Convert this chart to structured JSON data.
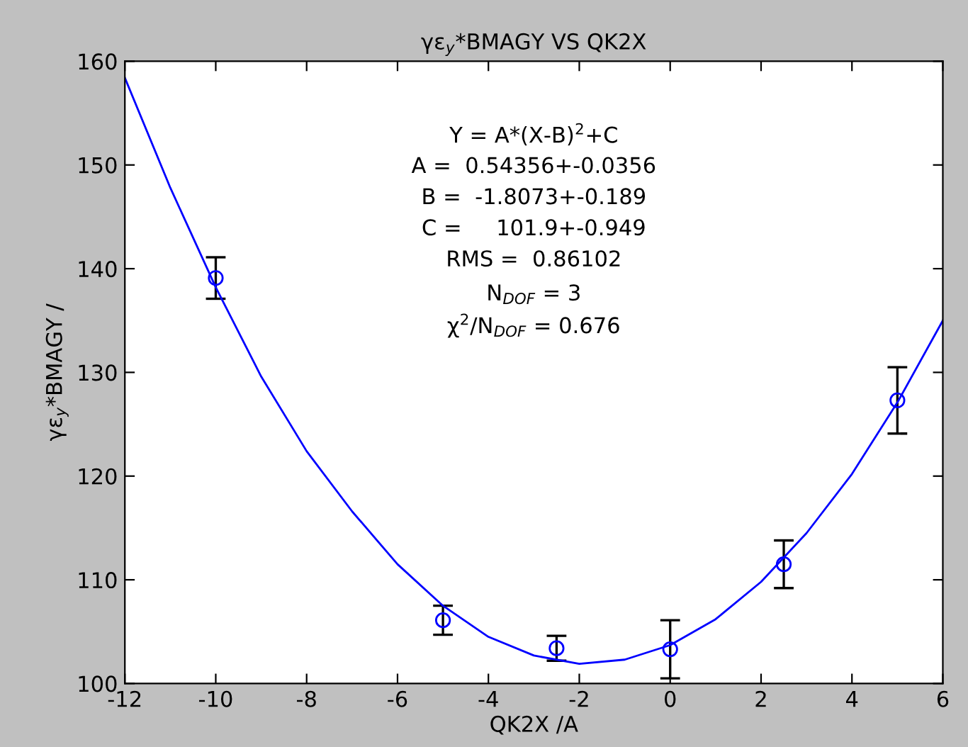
{
  "chart_data": {
    "type": "scatter",
    "title": "γε$_{y}$*BMAGY VS QK2X",
    "xlabel": "QK2X /A",
    "ylabel": "γε$_{y}$*BMAGY /",
    "annotations": [
      "Y = A*(X-B)$^{2}$+C",
      "A =  0.54356+-0.0356",
      "B =  -1.8073+-0.189",
      "C =     101.9+-0.949",
      "RMS =  0.86102",
      "N$_{DOF}$ = 3",
      "χ$^{2}$/N$_{DOF}$ = 0.676"
    ],
    "x": [
      -10,
      -5,
      -2.5,
      0,
      2.5,
      5
    ],
    "series": [
      {
        "color": "#0000ff",
        "marker": "circle",
        "values": [
          139.1,
          106.1,
          103.4,
          103.3,
          111.5,
          127.3
        ],
        "errors": [
          2.0,
          1.4,
          1.2,
          2.8,
          2.3,
          3.2
        ]
      },
      {
        "type": "line",
        "color": "#0000ff",
        "marker": "none",
        "x": [
          -12,
          -11,
          -10,
          -9,
          -8,
          -7,
          -6,
          -5,
          -4,
          -3,
          -2,
          -1,
          0,
          1,
          2,
          3,
          4,
          5,
          6
        ],
        "values": [
          158.4,
          147.8,
          138.2,
          129.6,
          122.4,
          116.6,
          111.5,
          107.5,
          104.5,
          102.7,
          101.9,
          102.3,
          103.7,
          106.2,
          109.8,
          114.5,
          120.2,
          127.1,
          135.0
        ]
      }
    ],
    "xlim": [
      -12,
      6
    ],
    "xticks": [
      -12,
      -10,
      -8,
      -6,
      -4,
      -2,
      0,
      2,
      4,
      6
    ],
    "ylim": [
      100,
      160
    ],
    "yticks": [
      100,
      110,
      120,
      130,
      140,
      150,
      160
    ],
    "grid": false,
    "legend": false
  }
}
